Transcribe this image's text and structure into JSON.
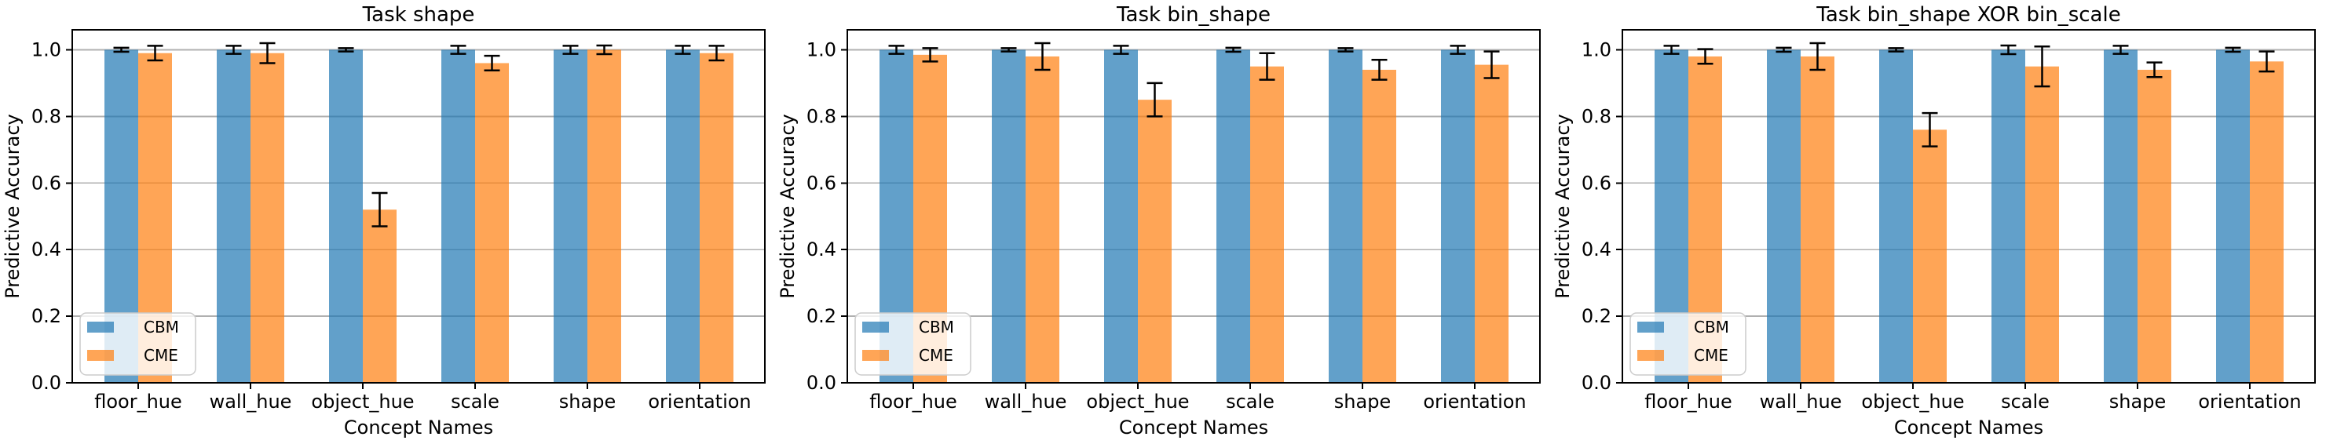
{
  "figure": {
    "background": "#ffffff"
  },
  "style": {
    "bar_opacity": 0.7,
    "grid_color": "#b0b0b0",
    "spine_color": "#000000",
    "error_color": "#000000",
    "text_color": "#000000",
    "legend_background": "#ffffff",
    "legend_border": "#cccccc"
  },
  "chart_data": [
    {
      "type": "bar",
      "title": "Task shape",
      "xlabel": "Concept Names",
      "ylabel": "Predictive Accuracy",
      "categories": [
        "floor_hue",
        "wall_hue",
        "object_hue",
        "scale",
        "shape",
        "orientation"
      ],
      "ylim": [
        0,
        1.06
      ],
      "yticks": [
        0.0,
        0.2,
        0.4,
        0.6,
        0.8,
        1.0
      ],
      "ytick_labels": [
        "0.0",
        "0.2",
        "0.4",
        "0.6",
        "0.8",
        "1.0"
      ],
      "grid": true,
      "legend_position": "lower left",
      "series": [
        {
          "name": "CBM",
          "color": "#1f77b4",
          "values": [
            1.0,
            1.0,
            1.0,
            1.0,
            1.0,
            1.0
          ],
          "errors": [
            0.006,
            0.012,
            0.005,
            0.012,
            0.012,
            0.012
          ]
        },
        {
          "name": "CME",
          "color": "#ff7f0e",
          "values": [
            0.99,
            0.99,
            0.52,
            0.96,
            1.0,
            0.99
          ],
          "errors": [
            0.022,
            0.03,
            0.05,
            0.022,
            0.013,
            0.022
          ]
        }
      ]
    },
    {
      "type": "bar",
      "title": "Task bin_shape",
      "xlabel": "Concept Names",
      "ylabel": "Predictive Accuracy",
      "categories": [
        "floor_hue",
        "wall_hue",
        "object_hue",
        "scale",
        "shape",
        "orientation"
      ],
      "ylim": [
        0,
        1.06
      ],
      "yticks": [
        0.0,
        0.2,
        0.4,
        0.6,
        0.8,
        1.0
      ],
      "ytick_labels": [
        "0.0",
        "0.2",
        "0.4",
        "0.6",
        "0.8",
        "1.0"
      ],
      "grid": true,
      "legend_position": "lower left",
      "series": [
        {
          "name": "CBM",
          "color": "#1f77b4",
          "values": [
            1.0,
            1.0,
            1.0,
            1.0,
            1.0,
            1.0
          ],
          "errors": [
            0.012,
            0.005,
            0.012,
            0.006,
            0.005,
            0.012
          ]
        },
        {
          "name": "CME",
          "color": "#ff7f0e",
          "values": [
            0.985,
            0.98,
            0.85,
            0.95,
            0.94,
            0.955
          ],
          "errors": [
            0.02,
            0.04,
            0.05,
            0.04,
            0.03,
            0.04
          ]
        }
      ]
    },
    {
      "type": "bar",
      "title": "Task bin_shape XOR bin_scale",
      "xlabel": "Concept Names",
      "ylabel": "Predictive Accuracy",
      "categories": [
        "floor_hue",
        "wall_hue",
        "object_hue",
        "scale",
        "shape",
        "orientation"
      ],
      "ylim": [
        0,
        1.06
      ],
      "yticks": [
        0.0,
        0.2,
        0.4,
        0.6,
        0.8,
        1.0
      ],
      "ytick_labels": [
        "0.0",
        "0.2",
        "0.4",
        "0.6",
        "0.8",
        "1.0"
      ],
      "grid": true,
      "legend_position": "lower left",
      "series": [
        {
          "name": "CBM",
          "color": "#1f77b4",
          "values": [
            1.0,
            1.0,
            1.0,
            1.0,
            1.0,
            1.0
          ],
          "errors": [
            0.012,
            0.006,
            0.005,
            0.013,
            0.012,
            0.006
          ]
        },
        {
          "name": "CME",
          "color": "#ff7f0e",
          "values": [
            0.98,
            0.98,
            0.76,
            0.95,
            0.94,
            0.965
          ],
          "errors": [
            0.022,
            0.04,
            0.05,
            0.06,
            0.022,
            0.03
          ]
        }
      ]
    }
  ]
}
